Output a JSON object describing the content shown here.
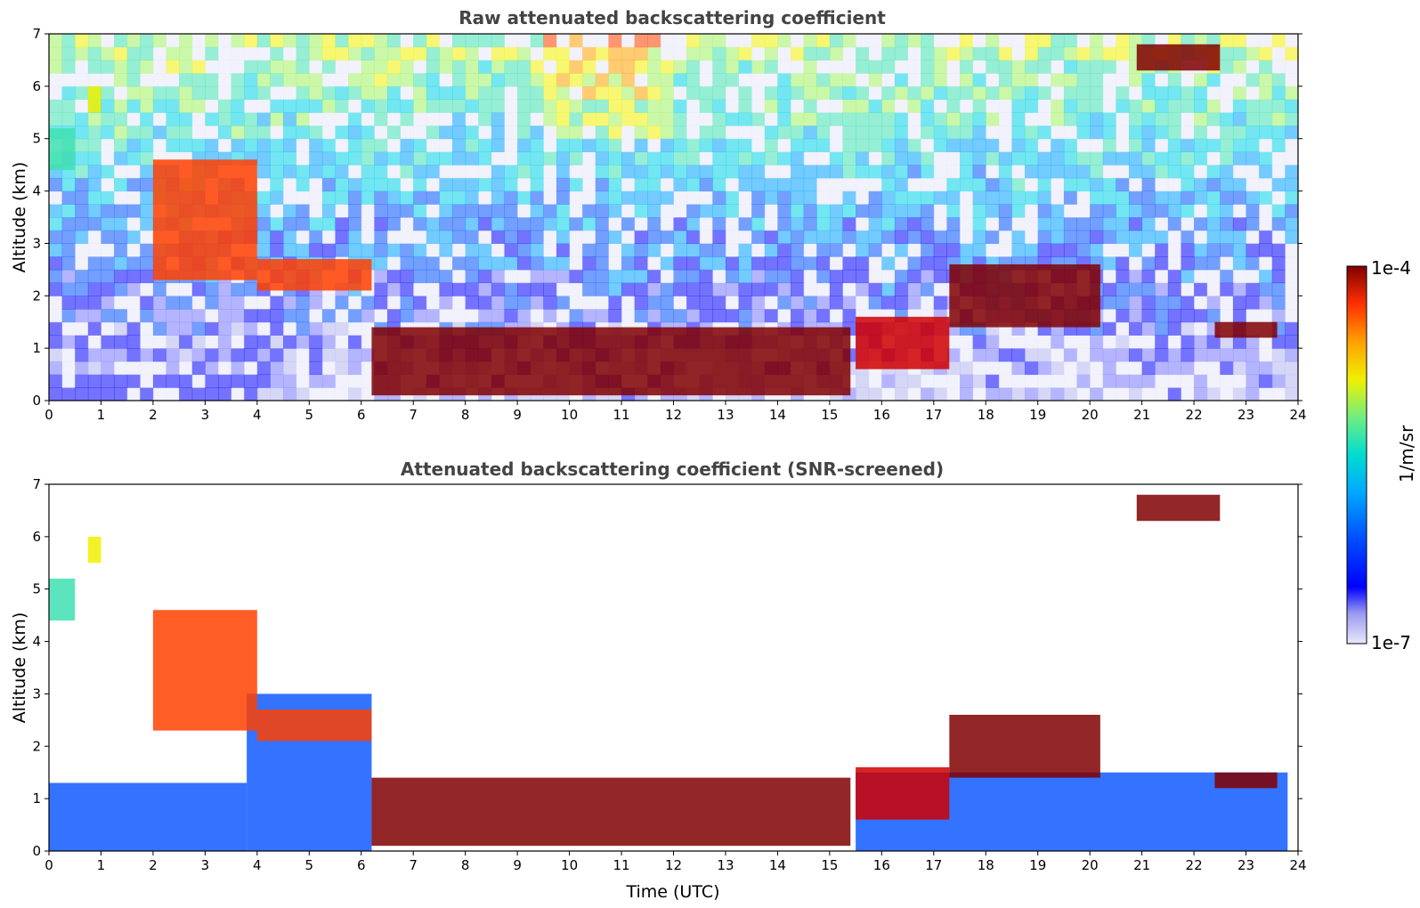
{
  "chart_data": [
    {
      "type": "heatmap",
      "title": "Raw attenuated backscattering coefficient",
      "xlabel": "",
      "ylabel": "Altitude (km)",
      "xlim": [
        0,
        24
      ],
      "ylim": [
        0,
        7
      ],
      "xticks": [
        "0",
        "1",
        "2",
        "3",
        "4",
        "5",
        "6",
        "7",
        "8",
        "9",
        "10",
        "11",
        "12",
        "13",
        "14",
        "15",
        "16",
        "17",
        "18",
        "19",
        "20",
        "21",
        "22",
        "23",
        "24"
      ],
      "yticks": [
        "0",
        "1",
        "2",
        "3",
        "4",
        "5",
        "6",
        "7"
      ],
      "color_scale": "log",
      "features": [
        {
          "kind": "layer",
          "t": [
            0.0,
            0.5
          ],
          "z": [
            4.4,
            5.2
          ],
          "level": 0.55
        },
        {
          "kind": "layer",
          "t": [
            0.75,
            1.0
          ],
          "z": [
            5.5,
            6.0
          ],
          "level": 0.7
        },
        {
          "kind": "layer",
          "t": [
            2.0,
            4.0
          ],
          "z": [
            2.3,
            4.6
          ],
          "level": 0.8
        },
        {
          "kind": "layer",
          "t": [
            4.0,
            6.2
          ],
          "z": [
            2.1,
            2.7
          ],
          "level": 0.85
        },
        {
          "kind": "layer",
          "t": [
            6.2,
            15.4
          ],
          "z": [
            0.1,
            1.4
          ],
          "level": 1.0
        },
        {
          "kind": "layer",
          "t": [
            15.5,
            17.3
          ],
          "z": [
            0.6,
            1.6
          ],
          "level": 0.9
        },
        {
          "kind": "layer",
          "t": [
            17.3,
            20.2
          ],
          "z": [
            1.4,
            2.6
          ],
          "level": 0.95
        },
        {
          "kind": "layer",
          "t": [
            22.4,
            23.6
          ],
          "z": [
            1.2,
            1.5
          ],
          "level": 0.95
        },
        {
          "kind": "layer",
          "t": [
            20.9,
            22.5
          ],
          "z": [
            6.3,
            6.8
          ],
          "level": 0.95
        }
      ]
    },
    {
      "type": "heatmap",
      "title": "Attenuated backscattering coefficient (SNR-screened)",
      "xlabel": "Time (UTC)",
      "ylabel": "Altitude (km)",
      "xlim": [
        0,
        24
      ],
      "ylim": [
        0,
        7
      ],
      "xticks": [
        "0",
        "1",
        "2",
        "3",
        "4",
        "5",
        "6",
        "7",
        "8",
        "9",
        "10",
        "11",
        "12",
        "13",
        "14",
        "15",
        "16",
        "17",
        "18",
        "19",
        "20",
        "21",
        "22",
        "23",
        "24"
      ],
      "yticks": [
        "0",
        "1",
        "2",
        "3",
        "4",
        "5",
        "6",
        "7"
      ],
      "color_scale": "log",
      "screened_regions": [
        {
          "t": [
            0.0,
            3.8
          ],
          "z": [
            0.0,
            1.3
          ]
        },
        {
          "t": [
            3.8,
            6.2
          ],
          "z": [
            0.0,
            3.0
          ]
        },
        {
          "t": [
            15.5,
            23.8
          ],
          "z": [
            0.0,
            1.5
          ]
        }
      ]
    }
  ],
  "colorbar": {
    "label": "1/m/sr",
    "max_label": "1e-4",
    "min_label": "1e-7",
    "colors": [
      "#e8e8fa",
      "#b4b4f0",
      "#7878ff",
      "#0000ff",
      "#0050ff",
      "#00a0ff",
      "#00d2e6",
      "#40e0b0",
      "#a0f060",
      "#f0f000",
      "#ffa000",
      "#ff4000",
      "#d00000",
      "#800000"
    ]
  }
}
